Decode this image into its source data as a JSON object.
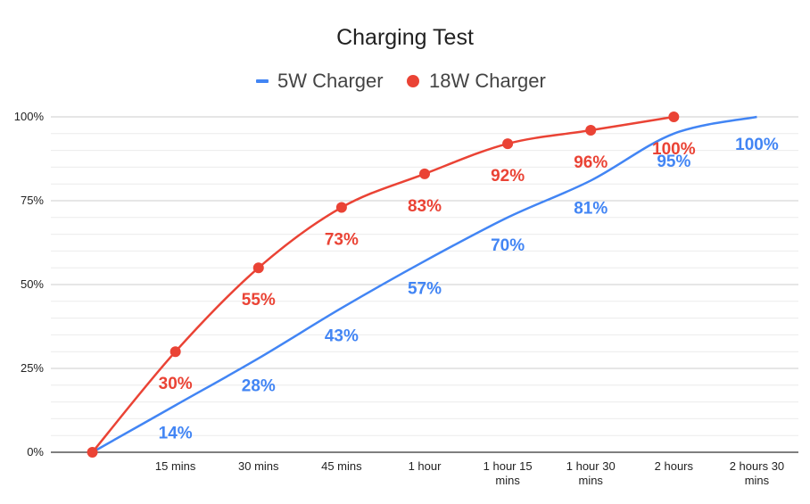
{
  "chart_data": {
    "type": "line",
    "title": "Charging Test",
    "xlabel": "",
    "ylabel": "",
    "categories": [
      "",
      "15 mins",
      "30 mins",
      "45 mins",
      "1 hour",
      "1 hour 15 mins",
      "1 hour 30 mins",
      "2 hours",
      "2 hours 30 mins"
    ],
    "ylim": [
      0,
      100
    ],
    "yticks": [
      "0%",
      "25%",
      "50%",
      "75%",
      "100%"
    ],
    "grid": true,
    "legend_position": "top",
    "series": [
      {
        "name": "5W Charger",
        "color": "#4285f4",
        "marker": "none",
        "values": [
          0,
          14,
          28,
          43,
          57,
          70,
          81,
          95,
          100
        ],
        "labels": [
          "",
          "14%",
          "28%",
          "43%",
          "57%",
          "70%",
          "81%",
          "95%",
          "100%"
        ]
      },
      {
        "name": "18W Charger",
        "color": "#ea4335",
        "marker": "circle",
        "values": [
          0,
          30,
          55,
          73,
          83,
          92,
          96,
          100,
          null
        ],
        "labels": [
          "",
          "30%",
          "55%",
          "73%",
          "83%",
          "92%",
          "96%",
          "100%",
          ""
        ]
      }
    ]
  }
}
